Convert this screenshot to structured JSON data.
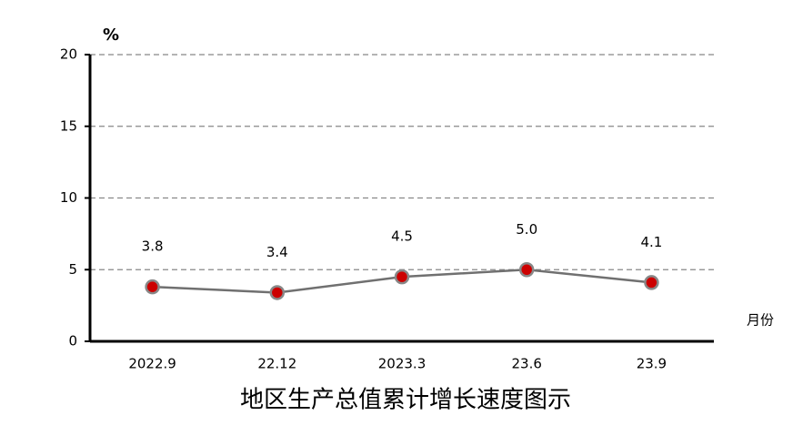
{
  "chart_data": {
    "type": "line",
    "title": "地区生产总值累计增长速度图示",
    "y_label": "%",
    "x_label": "月份",
    "categories": [
      "2022.9",
      "22.12",
      "2023.3",
      "23.6",
      "23.9"
    ],
    "values": [
      3.8,
      3.4,
      4.5,
      5.0,
      4.1
    ],
    "value_labels": [
      "3.8",
      "3.4",
      "4.5",
      "5.0",
      "4.1"
    ],
    "color": "#707070",
    "marker_color": "#cc0000",
    "ylim": [
      0,
      20
    ],
    "yticks": [
      0,
      5,
      10,
      15,
      20
    ],
    "grid": true
  }
}
